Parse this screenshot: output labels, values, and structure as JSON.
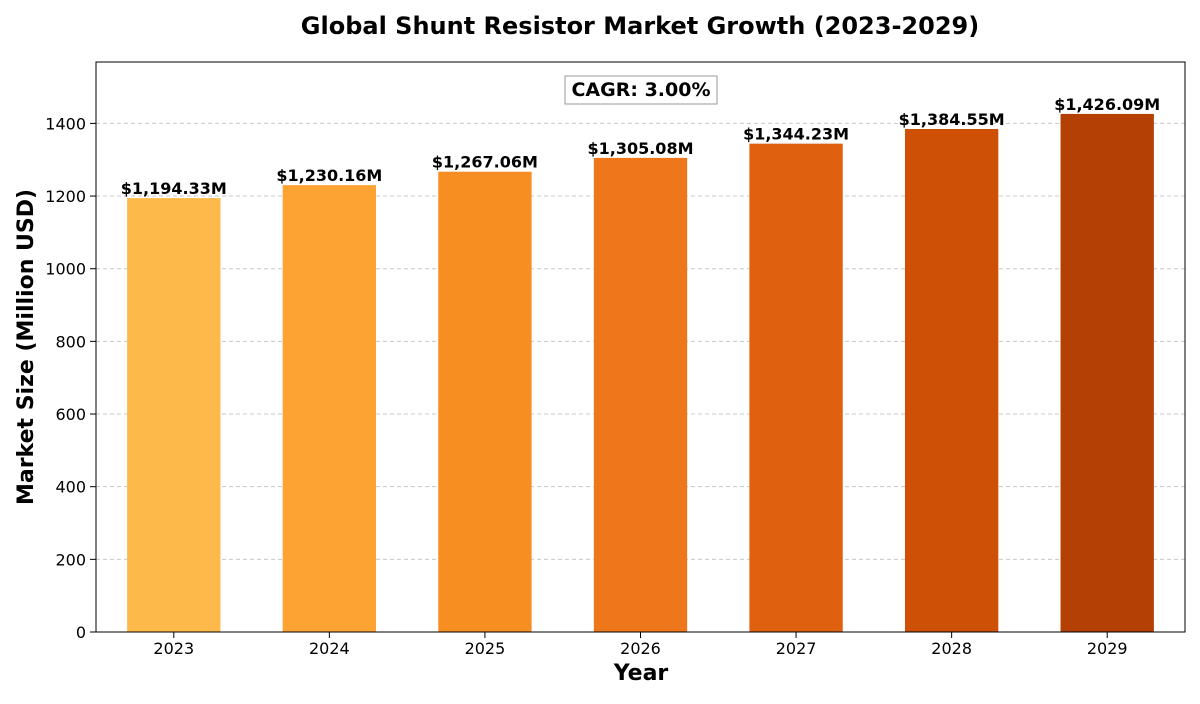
{
  "chart_data": {
    "type": "bar",
    "title": "Global Shunt Resistor Market Growth (2023-2029)",
    "xlabel": "Year",
    "ylabel": "Market Size (Million USD)",
    "categories": [
      "2023",
      "2024",
      "2025",
      "2026",
      "2027",
      "2028",
      "2029"
    ],
    "values": [
      1194.33,
      1230.16,
      1267.06,
      1305.08,
      1344.23,
      1384.55,
      1426.09
    ],
    "data_labels": [
      "$1,194.33M",
      "$1,230.16M",
      "$1,267.06M",
      "$1,305.08M",
      "$1,344.23M",
      "$1,384.55M",
      "$1,426.09M"
    ],
    "ylim": [
      0,
      1569
    ],
    "yticks": [
      0,
      200,
      400,
      600,
      800,
      1000,
      1200,
      1400
    ],
    "grid": true,
    "colors": [
      "#fdb94a",
      "#fca334",
      "#f78e22",
      "#ee771b",
      "#df6110",
      "#cd5004",
      "#b54003"
    ],
    "annotation": "CAGR: 3.00%"
  }
}
